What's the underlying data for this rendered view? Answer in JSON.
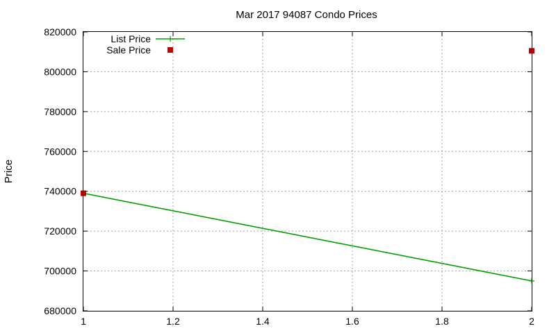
{
  "chart_data": {
    "type": "line",
    "title": "Mar 2017 94087 Condo Prices",
    "xlabel": "",
    "ylabel": "Price",
    "xlim": [
      1,
      2
    ],
    "ylim": [
      680000,
      820000
    ],
    "x_ticks": [
      "1",
      "1.2",
      "1.4",
      "1.6",
      "1.8",
      "2"
    ],
    "y_ticks": [
      "680000",
      "700000",
      "720000",
      "740000",
      "760000",
      "780000",
      "800000",
      "820000"
    ],
    "grid": true,
    "legend_placement": "top-left",
    "series": [
      {
        "name": "List Price",
        "style": "line",
        "color": "#009e00",
        "points": [
          [
            1,
            739000
          ],
          [
            2,
            695000
          ]
        ]
      },
      {
        "name": "Sale Price",
        "style": "points",
        "color": "#c00000",
        "points": [
          [
            1,
            739000
          ],
          [
            2,
            810500
          ]
        ]
      }
    ]
  }
}
